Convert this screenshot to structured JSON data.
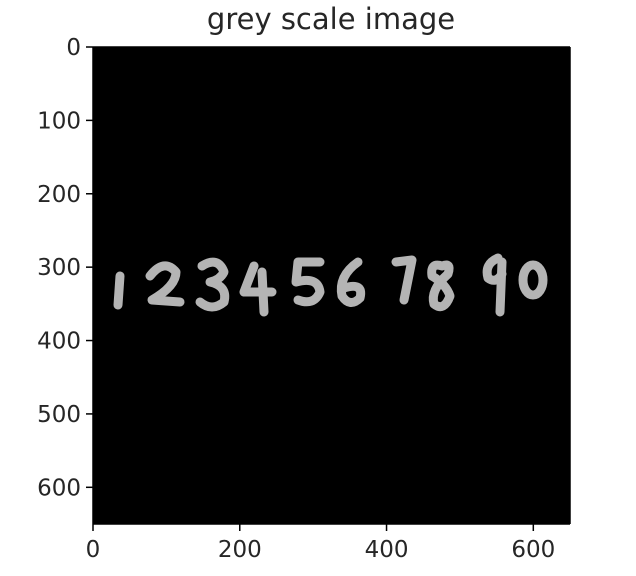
{
  "title": "grey scale image",
  "digits_string": "1234567890",
  "axes": {
    "x_ticks": [
      0,
      200,
      400,
      600
    ],
    "y_ticks": [
      0,
      100,
      200,
      300,
      400,
      500,
      600
    ],
    "x_range": [
      0,
      650
    ],
    "y_range": [
      0,
      650
    ]
  },
  "colors": {
    "background": "#000000",
    "digit": "#b4b4b4",
    "axis": "#000000",
    "text": "#262626"
  }
}
